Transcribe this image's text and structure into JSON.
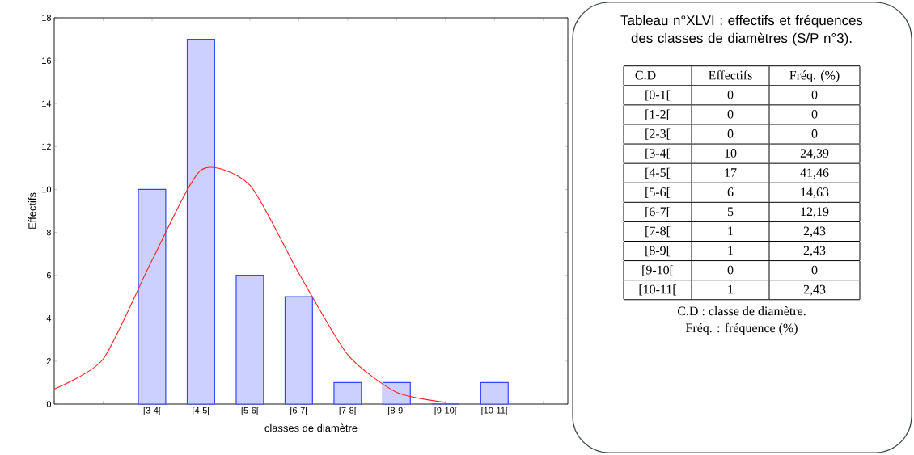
{
  "chart_data": [
    {
      "type": "bar",
      "xlabel": "classes de diamètre",
      "ylabel": "Effectifs",
      "categories": [
        null,
        null,
        "[3-4[",
        "[4-5[",
        "[5-6[",
        "[6-7[",
        "[7-8[",
        "[8-9[",
        "[9-10[",
        "[10-11[",
        null
      ],
      "ylim": [
        0,
        18
      ],
      "yticks": [
        0,
        2,
        4,
        6,
        8,
        10,
        12,
        14,
        16,
        18
      ],
      "series": [
        {
          "type": "bar",
          "color": "#3344ff",
          "values": [
            null,
            null,
            10,
            17,
            6,
            5,
            1,
            1,
            0,
            1,
            null
          ]
        },
        {
          "type": "line",
          "color": "#ff2020",
          "values": [
            0.7,
            2.1,
            6.7,
            10.9,
            10.2,
            6.1,
            2.3,
            0.55,
            0.08,
            null,
            null
          ]
        }
      ]
    },
    {
      "type": "other",
      "title": "Tableau n°XLVI : effectifs et fréquences des classes de diamètres (S/P n°3).",
      "xlabel": "C.D",
      "categories": [
        "[0-1[",
        "[1-2[",
        "[2-3[",
        "[3-4[",
        "[4-5[",
        "[5-6[",
        "[6-7[",
        "[7-8[",
        "[8-9[",
        "[9-10[",
        "[10-11["
      ],
      "series": [
        {
          "name": "Effectifs",
          "values": [
            0,
            0,
            0,
            10,
            17,
            6,
            5,
            1,
            1,
            0,
            1
          ],
          "data_labels": true
        },
        {
          "name": "Fréq. (%)",
          "values": [
            0,
            0,
            0,
            24.39,
            41.46,
            14.63,
            12.19,
            2.43,
            2.43,
            0,
            2.43
          ],
          "value_labels": [
            "0",
            "0",
            "0",
            "24,39",
            "41,46",
            "14,63",
            "12,19",
            "2,43",
            "2,43",
            "0",
            "2,43"
          ]
        }
      ],
      "annotations": [
        "C.D : classe de diamètre.",
        "Fréq. : fréquence (%)"
      ]
    }
  ]
}
